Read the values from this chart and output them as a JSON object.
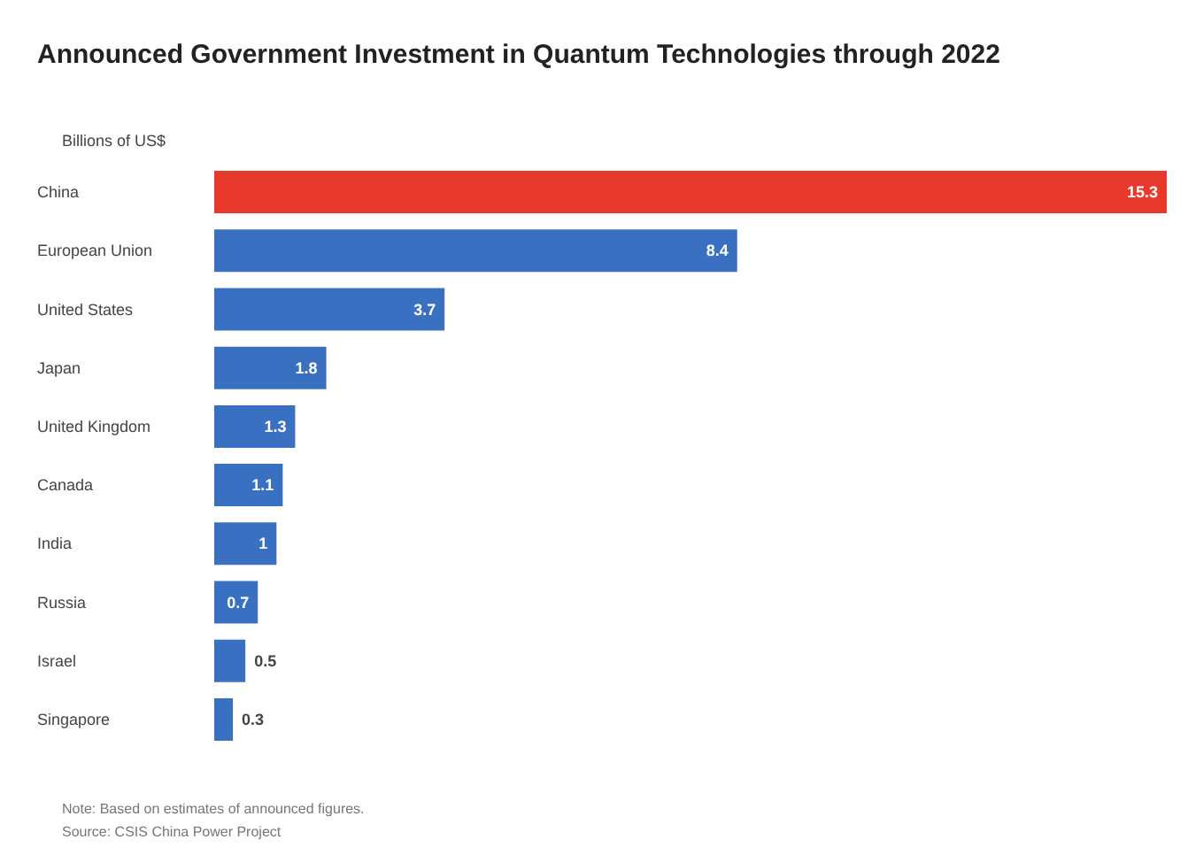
{
  "chart_data": {
    "type": "bar",
    "orientation": "horizontal",
    "title": "Announced Government Investment in Quantum Technologies through 2022",
    "subtitle": "Billions of US$",
    "categories": [
      "China",
      "European Union",
      "United States",
      "Japan",
      "United Kingdom",
      "Canada",
      "India",
      "Russia",
      "Israel",
      "Singapore"
    ],
    "values": [
      15.3,
      8.4,
      3.7,
      1.8,
      1.3,
      1.1,
      1,
      0.7,
      0.5,
      0.3
    ],
    "colors": [
      "#e8392b",
      "#3a70c2",
      "#3a70c2",
      "#3a70c2",
      "#3a70c2",
      "#3a70c2",
      "#3a70c2",
      "#3a70c2",
      "#3a70c2",
      "#3a70c2"
    ],
    "data_labels": true,
    "annotations": [
      "Note: Based on estimates of announced figures.",
      "Source: CSIS China Power Project"
    ]
  }
}
